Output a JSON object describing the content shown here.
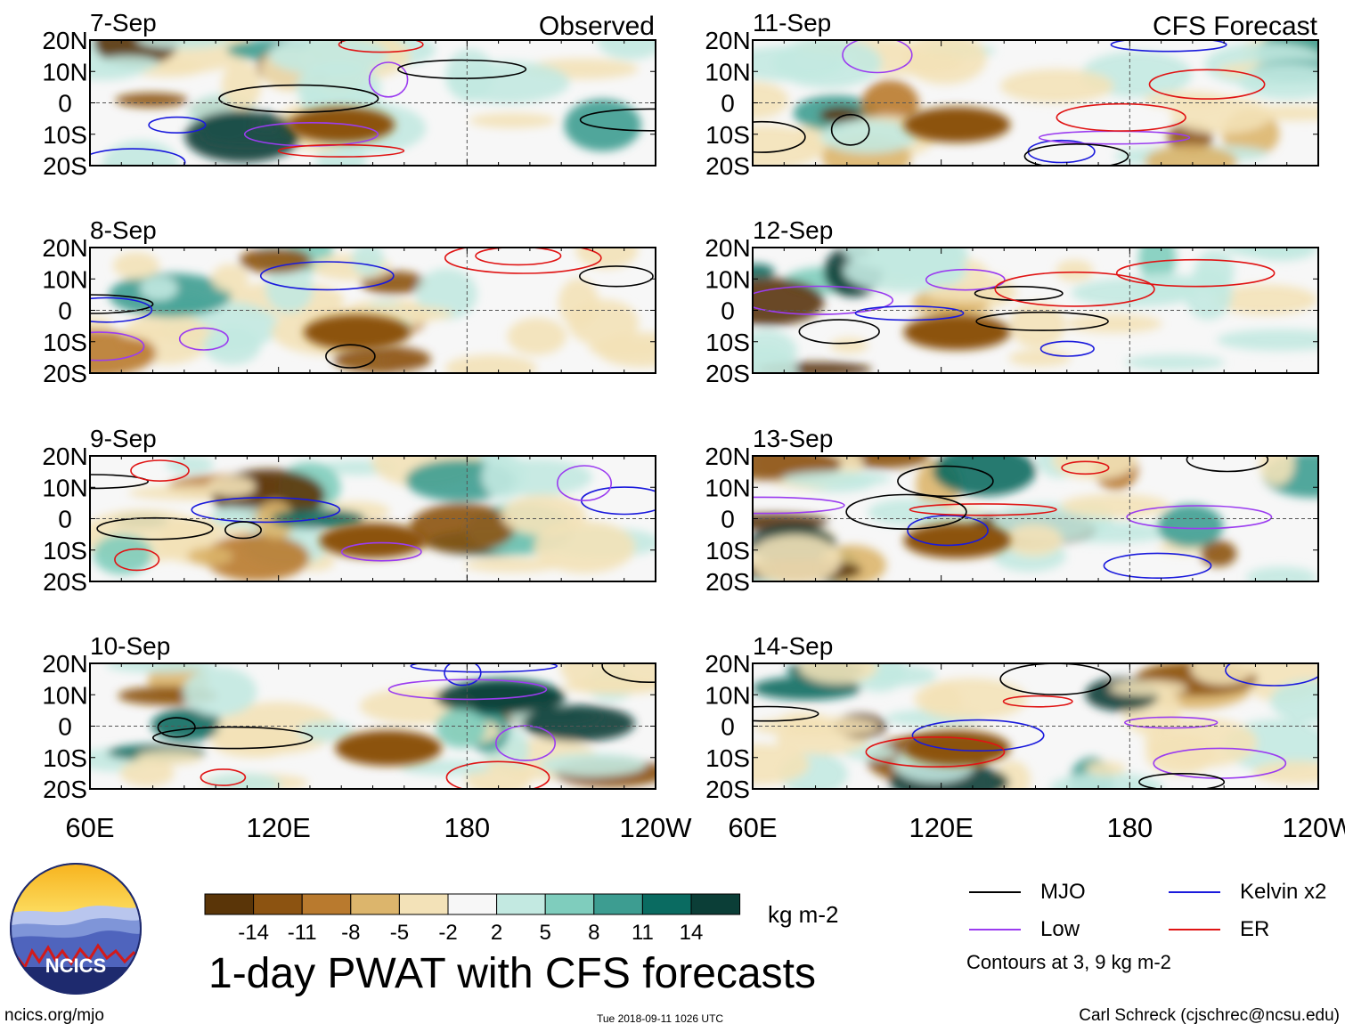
{
  "chart_data": {
    "type": "heatmap",
    "title": "1-day PWAT with CFS forecasts",
    "variable": "PWAT anomaly (1-day)",
    "units": "kg m-2",
    "left_column_label": "Observed",
    "right_column_label": "CFS Forecast",
    "x_ticks": [
      "60E",
      "120E",
      "180",
      "120W"
    ],
    "x_range_deg_east": [
      60,
      240
    ],
    "y_ticks": [
      "20N",
      "10N",
      "0",
      "10S",
      "20S"
    ],
    "y_range_deg": [
      -20,
      20
    ],
    "panels": [
      {
        "date": "7-Sep",
        "type": "observed"
      },
      {
        "date": "8-Sep",
        "type": "observed"
      },
      {
        "date": "9-Sep",
        "type": "observed"
      },
      {
        "date": "10-Sep",
        "type": "observed"
      },
      {
        "date": "11-Sep",
        "type": "forecast"
      },
      {
        "date": "12-Sep",
        "type": "forecast"
      },
      {
        "date": "13-Sep",
        "type": "forecast"
      },
      {
        "date": "14-Sep",
        "type": "forecast"
      }
    ],
    "colorbar": {
      "labels": [
        "-14",
        "-11",
        "-8",
        "-5",
        "-2",
        "2",
        "5",
        "8",
        "11",
        "14"
      ],
      "colors": [
        "#5a3508",
        "#8c5311",
        "#b97a2e",
        "#dcb56c",
        "#f3e2b8",
        "#f7f7f7",
        "#c3e9e1",
        "#7fcdbd",
        "#3d9d91",
        "#0a6b61",
        "#0b3e37"
      ]
    },
    "contour_legend": [
      {
        "label": "MJO",
        "color": "#000000"
      },
      {
        "label": "Kelvin x2",
        "color": "#1a1adc"
      },
      {
        "label": "Low",
        "color": "#9b3cf0"
      },
      {
        "label": "ER",
        "color": "#e01414"
      }
    ],
    "contour_note": "Contours at 3, 9 kg m-2"
  },
  "logo": {
    "text": "NCICS"
  },
  "footer": {
    "website": "ncics.org/mjo",
    "timestamp": "Tue 2018-09-11 1026 UTC",
    "author": "Carl Schreck (cjschrec@ncsu.edu)"
  }
}
